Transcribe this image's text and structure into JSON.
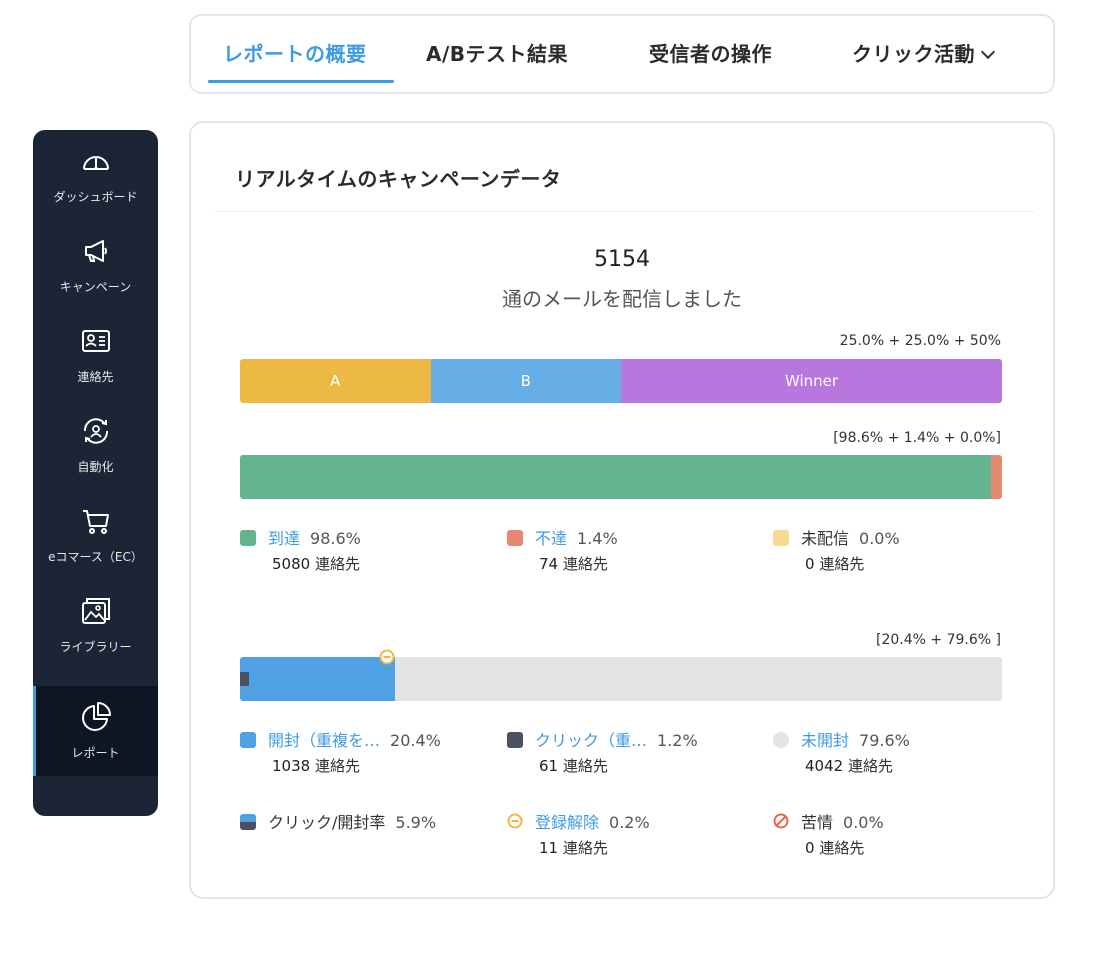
{
  "tabs": [
    {
      "label": "レポートの概要",
      "active": true
    },
    {
      "label": "A/Bテスト結果",
      "active": false
    },
    {
      "label": "受信者の操作",
      "active": false
    },
    {
      "label": "クリック活動",
      "active": false
    }
  ],
  "sidebar": {
    "items": [
      {
        "label": "ダッシュボード",
        "icon": "dashboard-icon"
      },
      {
        "label": "キャンペーン",
        "icon": "megaphone-icon"
      },
      {
        "label": "連絡先",
        "icon": "contact-card-icon"
      },
      {
        "label": "自動化",
        "icon": "automation-icon"
      },
      {
        "label": "eコマース（EC）",
        "icon": "cart-icon"
      },
      {
        "label": "ライブラリー",
        "icon": "library-icon"
      },
      {
        "label": "レポート",
        "icon": "pie-chart-icon",
        "active": true
      }
    ]
  },
  "card": {
    "title": "リアルタイムのキャンペーンデータ",
    "total_count": "5154",
    "total_sub": "通のメールを配信しました"
  },
  "split": {
    "ratio": "25.0% + 25.0% + 50%",
    "segments": [
      {
        "label": "A",
        "fraction": 0.25,
        "color": "#ecb944"
      },
      {
        "label": "B",
        "fraction": 0.25,
        "color": "#67aee6"
      },
      {
        "label": "Winner",
        "fraction": 0.5,
        "color": "#b877de"
      }
    ]
  },
  "delivery": {
    "ratio": "[98.6% + 1.4% + 0.0%]",
    "segments": [
      {
        "fraction": 0.986,
        "color": "#62b58f"
      },
      {
        "fraction": 0.014,
        "color": "#e58a70"
      },
      {
        "fraction": 0.0,
        "color": "#f6d992"
      }
    ],
    "stats": [
      {
        "name": "到達",
        "pct": "98.6%",
        "count": "5080",
        "unit": "連絡先",
        "color": "#62b58f"
      },
      {
        "name": "不達",
        "pct": "1.4%",
        "count": "74",
        "unit": "連絡先",
        "color": "#e58a70"
      },
      {
        "name": "未配信",
        "pct": "0.0%",
        "count": "0",
        "unit": "連絡先",
        "color": "#f6d992"
      }
    ]
  },
  "opens": {
    "ratio": "[20.4% + 79.6% ]",
    "open_fraction": 0.204,
    "click_fraction": 0.012,
    "colors": {
      "open": "#4fa1e3",
      "click": "#4a5260",
      "unopened": "#e2e3e5",
      "unsub": "#f0b840",
      "complaint": "#e6674a"
    },
    "stats": [
      {
        "name": "開封（重複を…",
        "pct": "20.4%",
        "count": "1038",
        "unit": "連絡先"
      },
      {
        "name": "クリック（重…",
        "pct": "1.2%",
        "count": "61",
        "unit": "連絡先"
      },
      {
        "name": "未開封",
        "pct": "79.6%",
        "count": "4042",
        "unit": "連絡先"
      },
      {
        "name": "クリック/開封率",
        "pct": "5.9%"
      },
      {
        "name": "登録解除",
        "pct": "0.2%",
        "count": "11",
        "unit": "連絡先"
      },
      {
        "name": "苦情",
        "pct": "0.0%",
        "count": "0",
        "unit": "連絡先"
      }
    ]
  }
}
